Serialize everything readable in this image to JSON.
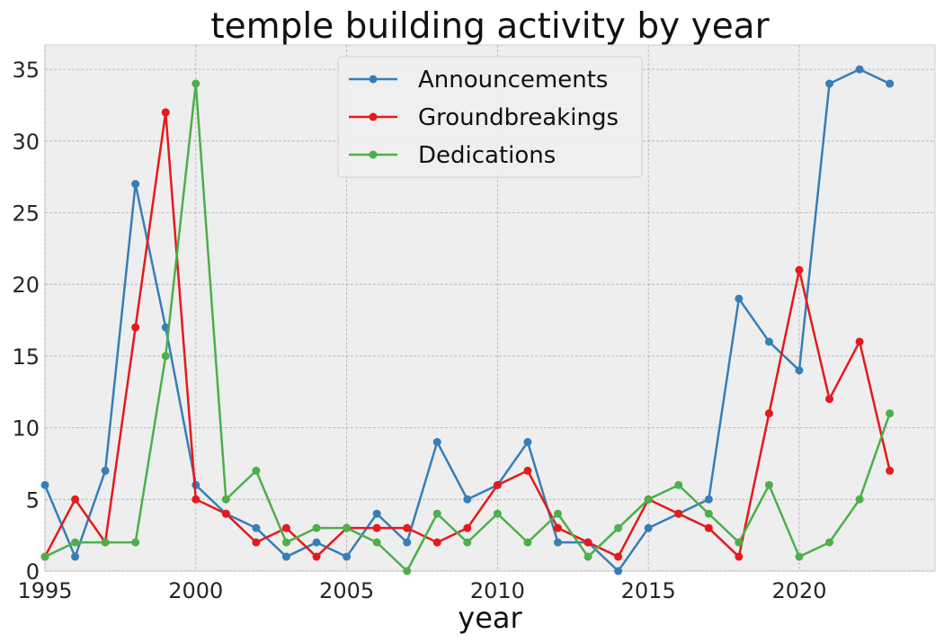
{
  "chart_data": {
    "type": "line",
    "title": "temple building activity by year",
    "xlabel": "year",
    "ylabel": "",
    "xlim": [
      1995,
      2024.5
    ],
    "ylim": [
      0,
      36.7
    ],
    "xticks": [
      1995,
      2000,
      2005,
      2010,
      2015,
      2020
    ],
    "yticks": [
      0,
      5,
      10,
      15,
      20,
      25,
      30,
      35
    ],
    "grid": true,
    "legend_position": "top-center",
    "x": [
      1995,
      1996,
      1997,
      1998,
      1999,
      2000,
      2001,
      2002,
      2003,
      2004,
      2005,
      2006,
      2007,
      2008,
      2009,
      2010,
      2011,
      2012,
      2013,
      2014,
      2015,
      2016,
      2017,
      2018,
      2019,
      2020,
      2021,
      2022,
      2023
    ],
    "series": [
      {
        "name": "Announcements",
        "color": "#377eb8",
        "values": [
          6,
          1,
          7,
          27,
          17,
          6,
          4,
          3,
          1,
          2,
          1,
          4,
          2,
          9,
          5,
          6,
          9,
          2,
          2,
          0,
          3,
          4,
          5,
          19,
          16,
          14,
          34,
          35,
          34
        ]
      },
      {
        "name": "Groundbreakings",
        "color": "#e41a1c",
        "values": [
          1,
          5,
          2,
          17,
          32,
          5,
          4,
          2,
          3,
          1,
          3,
          3,
          3,
          2,
          3,
          6,
          7,
          3,
          2,
          1,
          5,
          4,
          3,
          1,
          11,
          21,
          12,
          16,
          7
        ]
      },
      {
        "name": "Dedications",
        "color": "#4daf4a",
        "values": [
          1,
          2,
          2,
          2,
          15,
          34,
          5,
          7,
          2,
          3,
          3,
          2,
          0,
          4,
          2,
          4,
          2,
          4,
          1,
          3,
          5,
          6,
          4,
          2,
          6,
          1,
          2,
          5,
          11
        ]
      }
    ]
  }
}
